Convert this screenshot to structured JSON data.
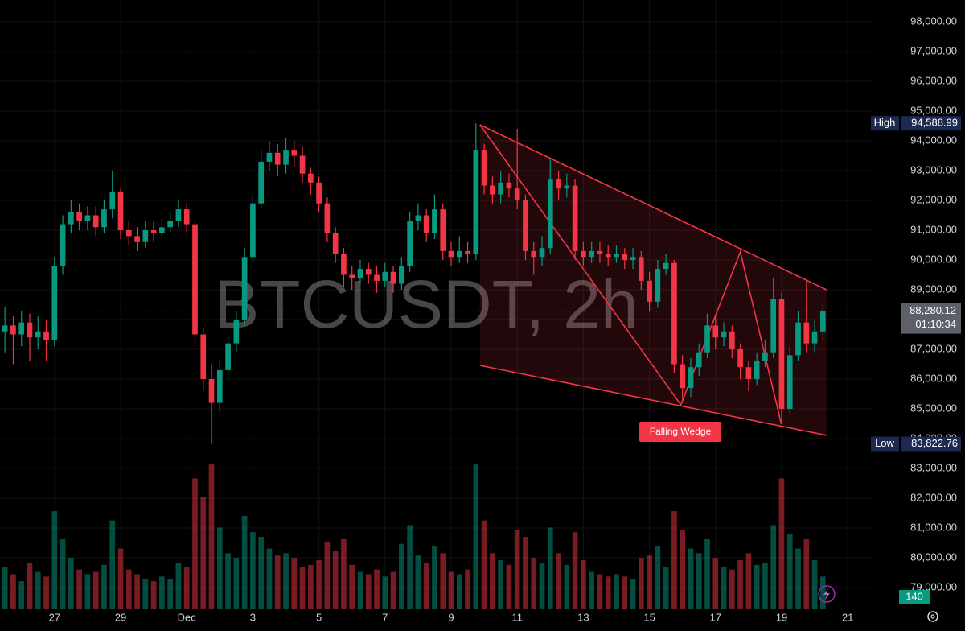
{
  "chart_data": {
    "type": "candlestick",
    "watermark": "BTCUSDT, 2h",
    "up_color": "#089981",
    "down_color": "#f23645",
    "grid": true,
    "xlim": [
      25.35,
      51.75
    ],
    "ylim": [
      77540,
      98730
    ],
    "xticks": [
      27,
      29,
      {
        "value": 31,
        "label": "Dec"
      },
      {
        "value": 33,
        "label": "3"
      },
      {
        "value": 35,
        "label": "5"
      },
      {
        "value": 37,
        "label": "7"
      },
      {
        "value": 39,
        "label": "9"
      },
      {
        "value": 41,
        "label": "11"
      },
      {
        "value": 43,
        "label": "13"
      },
      {
        "value": 45,
        "label": "15"
      },
      {
        "value": 47,
        "label": "17"
      },
      {
        "value": 49,
        "label": "19"
      },
      {
        "value": 51,
        "label": "21"
      }
    ],
    "yticks": [
      {
        "value": 79000,
        "label": "79,000.00"
      },
      {
        "value": 80000,
        "label": "80,000.00"
      },
      {
        "value": 81000,
        "label": "81,000.00"
      },
      {
        "value": 82000,
        "label": "82,000.00"
      },
      {
        "value": 83000,
        "label": "83,000.00"
      },
      {
        "value": 84000,
        "label": "84,000.00"
      },
      {
        "value": 85000,
        "label": "85,000.00"
      },
      {
        "value": 86000,
        "label": "86,000.00"
      },
      {
        "value": 87000,
        "label": "87,000.00"
      },
      {
        "value": 88000,
        "label": "88,000.00"
      },
      {
        "value": 89000,
        "label": "89,000.00"
      },
      {
        "value": 90000,
        "label": "90,000.00"
      },
      {
        "value": 91000,
        "label": "91,000.00"
      },
      {
        "value": 92000,
        "label": "92,000.00"
      },
      {
        "value": 93000,
        "label": "93,000.00"
      },
      {
        "value": 94000,
        "label": "94,000.00"
      },
      {
        "value": 95000,
        "label": "95,000.00"
      },
      {
        "value": 96000,
        "label": "96,000.00"
      },
      {
        "value": 97000,
        "label": "97,000.00"
      },
      {
        "value": 98000,
        "label": "98,000.00"
      }
    ],
    "x": [
      25.5,
      25.75,
      26,
      26.25,
      26.5,
      26.75,
      27,
      27.25,
      27.5,
      27.75,
      28,
      28.25,
      28.5,
      28.75,
      29,
      29.25,
      29.5,
      29.75,
      30,
      30.25,
      30.5,
      30.75,
      31,
      31.25,
      31.5,
      31.75,
      32,
      32.25,
      32.5,
      32.75,
      33,
      33.25,
      33.5,
      33.75,
      34,
      34.25,
      34.5,
      34.75,
      35,
      35.25,
      35.5,
      35.75,
      36,
      36.25,
      36.5,
      36.75,
      37,
      37.25,
      37.5,
      37.75,
      38,
      38.25,
      38.5,
      38.75,
      39,
      39.25,
      39.5,
      39.75,
      40,
      40.25,
      40.5,
      40.75,
      41,
      41.25,
      41.5,
      41.75,
      42,
      42.25,
      42.5,
      42.75,
      43,
      43.25,
      43.5,
      43.75,
      44,
      44.25,
      44.5,
      44.75,
      45,
      45.25,
      45.5,
      45.75,
      46,
      46.25,
      46.5,
      46.75,
      47,
      47.25,
      47.5,
      47.75,
      48,
      48.25,
      48.5,
      48.75,
      49,
      49.25,
      49.5,
      49.75,
      50,
      50.25
    ],
    "open": [
      87600,
      87800,
      87500,
      87900,
      87400,
      87600,
      87300,
      89800,
      91200,
      91600,
      91300,
      91500,
      91100,
      91700,
      92300,
      91000,
      90800,
      90600,
      91000,
      90900,
      91100,
      91300,
      91700,
      91200,
      87500,
      86000,
      85200,
      86300,
      87200,
      88000,
      90100,
      91900,
      93300,
      93600,
      93200,
      93700,
      93500,
      92900,
      92600,
      91900,
      90900,
      90200,
      89500,
      89400,
      89700,
      89500,
      89300,
      89600,
      89200,
      89800,
      91300,
      91500,
      90900,
      91700,
      90300,
      90100,
      90300,
      90200,
      93700,
      92500,
      92200,
      92600,
      92400,
      92000,
      90300,
      90100,
      90400,
      92700,
      92400,
      92500,
      90300,
      90100,
      90300,
      90200,
      90100,
      90200,
      90000,
      90100,
      89300,
      88600,
      89700,
      89900,
      86500,
      85700,
      86400,
      86900,
      87800,
      87400,
      87600,
      87000,
      86400,
      86000,
      86600,
      86900,
      88700,
      85000,
      86800,
      87900,
      87200,
      87600
    ],
    "high": [
      88400,
      88100,
      88300,
      88200,
      88100,
      88000,
      90100,
      91500,
      92000,
      91900,
      91800,
      91800,
      92000,
      93000,
      92400,
      91300,
      91100,
      91300,
      91300,
      91400,
      91600,
      92000,
      91900,
      91300,
      87700,
      86500,
      86600,
      87500,
      88300,
      90400,
      92200,
      93700,
      94000,
      93900,
      94100,
      94000,
      93800,
      93100,
      92800,
      92100,
      91100,
      90400,
      89800,
      90000,
      89900,
      89800,
      89900,
      89800,
      90100,
      91600,
      91900,
      91700,
      92200,
      91900,
      90600,
      90800,
      90600,
      94588.99,
      93900,
      92800,
      93000,
      92900,
      94400,
      92200,
      90600,
      90800,
      93400,
      93000,
      92900,
      92700,
      90600,
      90600,
      90600,
      90500,
      90500,
      90400,
      90400,
      90300,
      89600,
      90000,
      90200,
      90000,
      86800,
      86700,
      87200,
      88200,
      88100,
      87900,
      87800,
      87200,
      86600,
      86900,
      87300,
      89400,
      88900,
      87100,
      88300,
      89300,
      88000,
      88500
    ],
    "low": [
      86900,
      86500,
      87100,
      86600,
      87000,
      86600,
      87100,
      89500,
      90900,
      91000,
      91000,
      90800,
      90900,
      91400,
      90700,
      90500,
      90300,
      90400,
      90600,
      90700,
      90900,
      91100,
      90900,
      87100,
      85600,
      83822.76,
      84900,
      86000,
      86900,
      87800,
      89900,
      91700,
      93000,
      92800,
      92900,
      93100,
      92600,
      92200,
      91600,
      90600,
      89900,
      89100,
      89000,
      89200,
      89200,
      88900,
      89100,
      88900,
      89000,
      89600,
      91000,
      90600,
      90700,
      90000,
      89800,
      89900,
      89900,
      90000,
      92200,
      91900,
      91900,
      92100,
      91700,
      90000,
      89500,
      89800,
      90200,
      92000,
      92100,
      90000,
      89800,
      89900,
      89900,
      89800,
      89900,
      89700,
      89700,
      89000,
      88300,
      88400,
      89500,
      86200,
      85200,
      85400,
      86100,
      86700,
      87000,
      87100,
      86700,
      86000,
      85600,
      85800,
      86400,
      86700,
      84500,
      84800,
      86600,
      86900,
      86900,
      87300
    ],
    "close": [
      87800,
      87500,
      87900,
      87400,
      87600,
      87300,
      89800,
      91200,
      91600,
      91300,
      91500,
      91100,
      91700,
      92300,
      91000,
      90800,
      90600,
      91000,
      90900,
      91100,
      91300,
      91700,
      91200,
      87500,
      86000,
      85200,
      86300,
      87200,
      88000,
      90100,
      91900,
      93300,
      93600,
      93200,
      93700,
      93500,
      92900,
      92600,
      91900,
      90900,
      90200,
      89500,
      89400,
      89700,
      89500,
      89300,
      89600,
      89200,
      89800,
      91300,
      91500,
      90900,
      91700,
      90300,
      90100,
      90300,
      90200,
      93700,
      92500,
      92200,
      92600,
      92400,
      92000,
      90300,
      90100,
      90400,
      92700,
      92400,
      92500,
      90300,
      90100,
      90300,
      90200,
      90100,
      90200,
      90000,
      90100,
      89300,
      88600,
      89700,
      89900,
      86500,
      85700,
      86400,
      86900,
      87800,
      87400,
      87600,
      87000,
      86400,
      86000,
      86600,
      86900,
      88700,
      85000,
      86800,
      87900,
      87200,
      87600,
      88280.12
    ],
    "volume": [
      180,
      150,
      120,
      200,
      160,
      140,
      420,
      300,
      220,
      170,
      150,
      160,
      190,
      380,
      260,
      170,
      150,
      130,
      120,
      140,
      130,
      200,
      180,
      560,
      480,
      620,
      350,
      240,
      220,
      400,
      330,
      310,
      260,
      230,
      240,
      220,
      180,
      190,
      210,
      290,
      250,
      300,
      190,
      160,
      150,
      170,
      140,
      160,
      280,
      360,
      230,
      200,
      270,
      240,
      160,
      150,
      170,
      620,
      380,
      240,
      210,
      190,
      340,
      310,
      220,
      200,
      350,
      240,
      190,
      330,
      210,
      160,
      150,
      140,
      150,
      140,
      130,
      220,
      230,
      270,
      180,
      420,
      340,
      260,
      240,
      300,
      220,
      180,
      170,
      210,
      240,
      190,
      200,
      360,
      560,
      320,
      260,
      300,
      210,
      140
    ],
    "high_marker": {
      "name": "High",
      "price": {
        "value": 94588.99,
        "label": "94,588.99"
      }
    },
    "low_marker": {
      "name": "Low",
      "price": {
        "value": 83822.76,
        "label": "83,822.76"
      }
    },
    "last_price": {
      "value": 88280.12,
      "label": "88,280.12"
    },
    "countdown": "01:10:34",
    "wedge": {
      "label": "Falling Wedge",
      "color": "#f23645",
      "upper": {
        "x": [
          39.87,
          50.36
        ],
        "y": [
          94540,
          89000
        ]
      },
      "lower": {
        "x": [
          39.87,
          50.36
        ],
        "y": [
          86460,
          84110
        ]
      },
      "zigzag": {
        "x": [
          39.87,
          45.95,
          47.75,
          48.99
        ],
        "y": [
          94540,
          85135,
          90270,
          84490
        ]
      }
    }
  }
}
